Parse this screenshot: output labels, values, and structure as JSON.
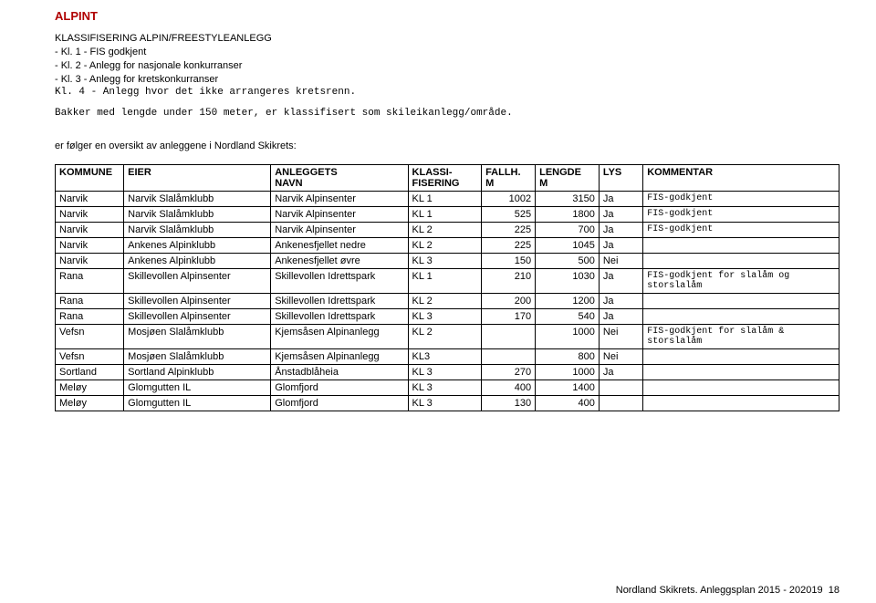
{
  "title": "ALPINT",
  "intro_heading": "KLASSIFISERING ALPIN/FREESTYLEANLEGG",
  "intro_lines": [
    "- Kl. 1   - FIS godkjent",
    "- Kl. 2   - Anlegg for nasjonale konkurranser",
    "- Kl. 3   - Anlegg for kretskonkurranser"
  ],
  "intro_mono1": "Kl. 4 - Anlegg hvor det ikke arrangeres kretsrenn.",
  "intro_mono2": "Bakker med lengde under 150 meter, er klassifisert som skileikanlegg/område.",
  "overview_text": "er følger en oversikt av anleggene i Nordland Skikrets:",
  "columns": {
    "c0a": "KOMMUNE",
    "c0b": "",
    "c1a": "EIER",
    "c1b": "",
    "c2a": "ANLEGGETS",
    "c2b": "NAVN",
    "c3a": "KLASSI-",
    "c3b": "FISERING",
    "c4a": "FALLH.",
    "c4b": "M",
    "c5a": "LENGDE",
    "c5b": "M",
    "c6a": "LYS",
    "c6b": "",
    "c7a": "KOMMENTAR",
    "c7b": ""
  },
  "rows": [
    {
      "k": "Narvik",
      "e": "Narvik Slalåmklubb",
      "a": "Narvik Alpinsenter",
      "kl": "KL 1",
      "f": "1002",
      "l": "3150",
      "ly": "Ja",
      "c": "FIS-godkjent",
      "cm": true
    },
    {
      "k": "Narvik",
      "e": "Narvik Slalåmklubb",
      "a": "Narvik Alpinsenter",
      "kl": "KL 1",
      "f": "525",
      "l": "1800",
      "ly": "Ja",
      "c": "FIS-godkjent",
      "cm": true
    },
    {
      "k": "Narvik",
      "e": "Narvik Slalåmklubb",
      "a": "Narvik Alpinsenter",
      "kl": "KL 2",
      "f": "225",
      "l": "700",
      "ly": "Ja",
      "c": "FIS-godkjent",
      "cm": true
    },
    {
      "k": "Narvik",
      "e": "Ankenes Alpinklubb",
      "a": "Ankenesfjellet nedre",
      "kl": "KL 2",
      "f": "225",
      "l": "1045",
      "ly": "Ja",
      "c": "",
      "cm": false
    },
    {
      "k": "Narvik",
      "e": "Ankenes Alpinklubb",
      "a": "Ankenesfjellet øvre",
      "kl": "KL 3",
      "f": "150",
      "l": "500",
      "ly": "Nei",
      "c": "",
      "cm": false
    },
    {
      "k": "Rana",
      "e": "Skillevollen Alpinsenter",
      "a": "Skillevollen Idrettspark",
      "kl": "KL 1",
      "f": "210",
      "l": "1030",
      "ly": "Ja",
      "c": "FIS-godkjent for slalåm og storslalåm",
      "cm": true
    },
    {
      "k": "Rana",
      "e": "Skillevollen Alpinsenter",
      "a": "Skillevollen Idrettspark",
      "kl": "KL 2",
      "f": "200",
      "l": "1200",
      "ly": "Ja",
      "c": "",
      "cm": false
    },
    {
      "k": "Rana",
      "e": "Skillevollen Alpinsenter",
      "a": "Skillevollen Idrettspark",
      "kl": "KL 3",
      "f": "170",
      "l": "540",
      "ly": "Ja",
      "c": "",
      "cm": false
    },
    {
      "k": "Vefsn",
      "e": "Mosjøen Slalåmklubb",
      "a": "Kjemsåsen Alpinanlegg",
      "kl": "KL 2",
      "f": "",
      "l": "1000",
      "ly": "Nei",
      "c": "FIS-godkjent for slalåm & storslalåm",
      "cm": true
    },
    {
      "k": "Vefsn",
      "e": "Mosjøen Slalåmklubb",
      "a": "Kjemsåsen Alpinanlegg",
      "kl": "KL3",
      "f": "",
      "l": "800",
      "ly": "Nei",
      "c": "",
      "cm": false
    },
    {
      "k": "Sortland",
      "e": "Sortland Alpinklubb",
      "a": "Ånstadblåheia",
      "kl": "KL 3",
      "f": "270",
      "l": "1000",
      "ly": "Ja",
      "c": "",
      "cm": false
    },
    {
      "k": "Meløy",
      "e": "Glomgutten IL",
      "a": "Glomfjord",
      "kl": "KL 3",
      "f": "400",
      "l": "1400",
      "ly": "",
      "c": "",
      "cm": false
    },
    {
      "k": "Meløy",
      "e": "Glomgutten IL",
      "a": "Glomfjord",
      "kl": "KL 3",
      "f": "130",
      "l": "400",
      "ly": "",
      "c": "",
      "cm": false
    }
  ],
  "col_widths": [
    "70",
    "150",
    "140",
    "75",
    "55",
    "65",
    "45",
    "200"
  ],
  "footer": "Nordland Skikrets.  Anleggsplan 2015 - 202019",
  "page_num": "18"
}
